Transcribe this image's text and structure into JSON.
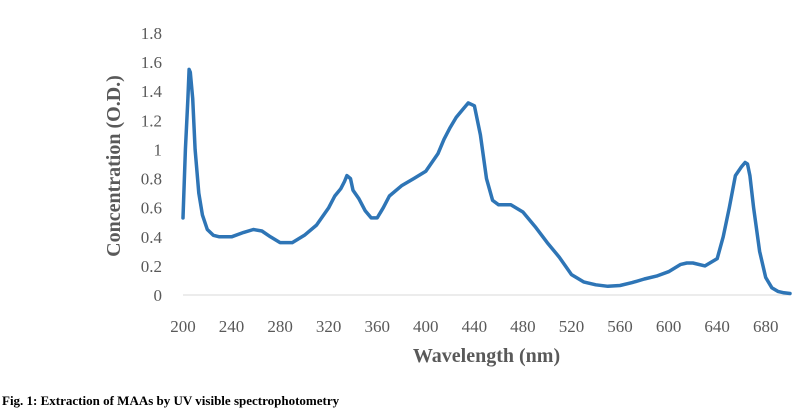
{
  "caption": "Fig. 1: Extraction of MAAs by UV visible spectrophotometry",
  "chart_data": {
    "type": "line",
    "title": "",
    "xlabel": "Wavelength (nm)",
    "ylabel": "Concentration (O.D.)",
    "xlim": [
      200,
      700
    ],
    "ylim": [
      0,
      1.8
    ],
    "xticks": [
      200,
      240,
      280,
      320,
      360,
      400,
      440,
      480,
      520,
      560,
      600,
      640,
      680
    ],
    "yticks": [
      "0",
      "0.2",
      "0.4",
      "0.6",
      "0.8",
      "1",
      "1.2",
      "1.4",
      "1.6",
      "1.8"
    ],
    "ytick_values": [
      0,
      0.2,
      0.4,
      0.6,
      0.8,
      1.0,
      1.2,
      1.4,
      1.6,
      1.8
    ],
    "grid": false,
    "legend": "none",
    "color": "#2E75B6",
    "series": [
      {
        "x": [
          200,
          202,
          204,
          205,
          206,
          208,
          210,
          213,
          216,
          220,
          225,
          230,
          240,
          250,
          258,
          265,
          272,
          280,
          290,
          300,
          310,
          320,
          325,
          330,
          333,
          335,
          338,
          340,
          345,
          350,
          355,
          360,
          365,
          370,
          380,
          390,
          400,
          410,
          415,
          420,
          425,
          430,
          435,
          440,
          445,
          450,
          455,
          460,
          470,
          480,
          490,
          500,
          510,
          520,
          530,
          540,
          550,
          560,
          570,
          580,
          590,
          600,
          610,
          615,
          620,
          630,
          640,
          645,
          650,
          655,
          660,
          663,
          665,
          667,
          670,
          675,
          680,
          685,
          690,
          695,
          700
        ],
        "y": [
          0.53,
          1.0,
          1.35,
          1.55,
          1.53,
          1.35,
          1.0,
          0.7,
          0.55,
          0.45,
          0.41,
          0.4,
          0.4,
          0.43,
          0.45,
          0.44,
          0.4,
          0.36,
          0.36,
          0.41,
          0.48,
          0.6,
          0.68,
          0.73,
          0.78,
          0.82,
          0.8,
          0.72,
          0.66,
          0.58,
          0.53,
          0.53,
          0.6,
          0.68,
          0.75,
          0.8,
          0.85,
          0.97,
          1.07,
          1.15,
          1.22,
          1.27,
          1.32,
          1.3,
          1.1,
          0.8,
          0.65,
          0.62,
          0.62,
          0.57,
          0.47,
          0.36,
          0.26,
          0.14,
          0.09,
          0.07,
          0.06,
          0.065,
          0.085,
          0.11,
          0.13,
          0.16,
          0.21,
          0.22,
          0.22,
          0.2,
          0.25,
          0.4,
          0.6,
          0.82,
          0.88,
          0.91,
          0.9,
          0.82,
          0.6,
          0.3,
          0.12,
          0.05,
          0.025,
          0.015,
          0.01
        ]
      }
    ]
  }
}
